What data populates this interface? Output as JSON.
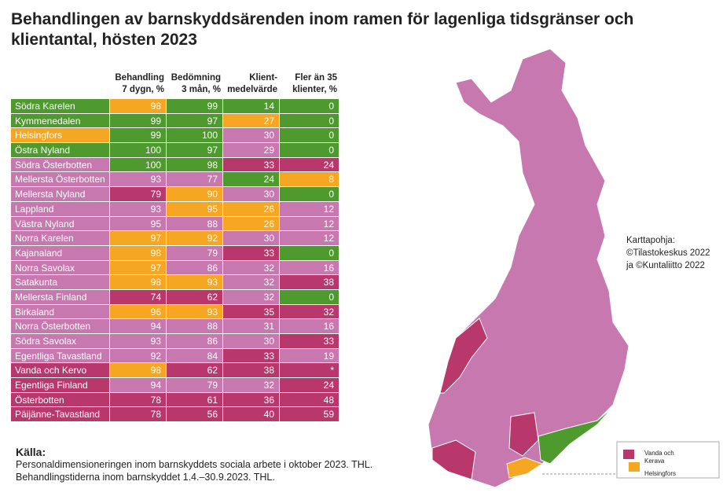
{
  "title": "Behandlingen av barnskyddsärenden inom ramen för lagenliga tidsgränser och klientantal, hösten 2023",
  "table": {
    "header": [
      "Behandling\n7 dygn, %",
      "Bedömning\n3 mån, %",
      "Klient-\nmedelvärde",
      "Fler än 35\nklienter, %"
    ],
    "rows": [
      {
        "name": "Södra Karelen",
        "name_color": "#4e9a2f",
        "cells": [
          {
            "value": 98,
            "color": "#f5a623"
          },
          {
            "value": 99,
            "color": "#4e9a2f"
          },
          {
            "value": 14,
            "color": "#4e9a2f"
          },
          {
            "value": 0,
            "color": "#4e9a2f"
          }
        ]
      },
      {
        "name": "Kymmenedalen",
        "name_color": "#4e9a2f",
        "cells": [
          {
            "value": 99,
            "color": "#4e9a2f"
          },
          {
            "value": 97,
            "color": "#4e9a2f"
          },
          {
            "value": 27,
            "color": "#f5a623"
          },
          {
            "value": 0,
            "color": "#4e9a2f"
          }
        ]
      },
      {
        "name": "Helsingfors",
        "name_color": "#f5a623",
        "cells": [
          {
            "value": 99,
            "color": "#4e9a2f"
          },
          {
            "value": 100,
            "color": "#4e9a2f"
          },
          {
            "value": 30,
            "color": "#c778ae"
          },
          {
            "value": 0,
            "color": "#4e9a2f"
          }
        ]
      },
      {
        "name": "Östra Nyland",
        "name_color": "#4e9a2f",
        "cells": [
          {
            "value": 100,
            "color": "#4e9a2f"
          },
          {
            "value": 97,
            "color": "#4e9a2f"
          },
          {
            "value": 29,
            "color": "#c778ae"
          },
          {
            "value": 0,
            "color": "#4e9a2f"
          }
        ]
      },
      {
        "name": "Södra Österbotten",
        "name_color": "#c778ae",
        "cells": [
          {
            "value": 100,
            "color": "#4e9a2f"
          },
          {
            "value": 98,
            "color": "#4e9a2f"
          },
          {
            "value": 33,
            "color": "#b8386b"
          },
          {
            "value": 24,
            "color": "#b8386b"
          }
        ]
      },
      {
        "name": "Mellersta Österbotten",
        "name_color": "#c778ae",
        "cells": [
          {
            "value": 93,
            "color": "#c778ae"
          },
          {
            "value": 77,
            "color": "#c778ae"
          },
          {
            "value": 24,
            "color": "#4e9a2f"
          },
          {
            "value": 8,
            "color": "#f5a623"
          }
        ]
      },
      {
        "name": "Mellersta Nyland",
        "name_color": "#c778ae",
        "cells": [
          {
            "value": 79,
            "color": "#b8386b"
          },
          {
            "value": 90,
            "color": "#f5a623"
          },
          {
            "value": 30,
            "color": "#c778ae"
          },
          {
            "value": 0,
            "color": "#4e9a2f"
          }
        ]
      },
      {
        "name": "Lappland",
        "name_color": "#c778ae",
        "cells": [
          {
            "value": 93,
            "color": "#c778ae"
          },
          {
            "value": 95,
            "color": "#f5a623"
          },
          {
            "value": 26,
            "color": "#f5a623"
          },
          {
            "value": 12,
            "color": "#c778ae"
          }
        ]
      },
      {
        "name": "Västra Nyland",
        "name_color": "#c778ae",
        "cells": [
          {
            "value": 95,
            "color": "#c778ae"
          },
          {
            "value": 88,
            "color": "#c778ae"
          },
          {
            "value": 26,
            "color": "#f5a623"
          },
          {
            "value": 12,
            "color": "#c778ae"
          }
        ]
      },
      {
        "name": "Norra Karelen",
        "name_color": "#c778ae",
        "cells": [
          {
            "value": 97,
            "color": "#f5a623"
          },
          {
            "value": 92,
            "color": "#f5a623"
          },
          {
            "value": 30,
            "color": "#c778ae"
          },
          {
            "value": 12,
            "color": "#c778ae"
          }
        ]
      },
      {
        "name": "Kajanaland",
        "name_color": "#c778ae",
        "cells": [
          {
            "value": 98,
            "color": "#f5a623"
          },
          {
            "value": 79,
            "color": "#c778ae"
          },
          {
            "value": 33,
            "color": "#b8386b"
          },
          {
            "value": 0,
            "color": "#4e9a2f"
          }
        ]
      },
      {
        "name": "Norra Savolax",
        "name_color": "#c778ae",
        "cells": [
          {
            "value": 97,
            "color": "#f5a623"
          },
          {
            "value": 86,
            "color": "#c778ae"
          },
          {
            "value": 32,
            "color": "#c778ae"
          },
          {
            "value": 16,
            "color": "#c778ae"
          }
        ]
      },
      {
        "name": "Satakunta",
        "name_color": "#c778ae",
        "cells": [
          {
            "value": 98,
            "color": "#f5a623"
          },
          {
            "value": 93,
            "color": "#f5a623"
          },
          {
            "value": 32,
            "color": "#c778ae"
          },
          {
            "value": 38,
            "color": "#b8386b"
          }
        ]
      },
      {
        "name": "Mellersta Finland",
        "name_color": "#c778ae",
        "cells": [
          {
            "value": 74,
            "color": "#b8386b"
          },
          {
            "value": 62,
            "color": "#b8386b"
          },
          {
            "value": 32,
            "color": "#c778ae"
          },
          {
            "value": 0,
            "color": "#4e9a2f"
          }
        ]
      },
      {
        "name": "Birkaland",
        "name_color": "#c778ae",
        "cells": [
          {
            "value": 96,
            "color": "#f5a623"
          },
          {
            "value": 93,
            "color": "#f5a623"
          },
          {
            "value": 35,
            "color": "#b8386b"
          },
          {
            "value": 32,
            "color": "#b8386b"
          }
        ]
      },
      {
        "name": "Norra Österbotten",
        "name_color": "#c778ae",
        "cells": [
          {
            "value": 94,
            "color": "#c778ae"
          },
          {
            "value": 88,
            "color": "#c778ae"
          },
          {
            "value": 31,
            "color": "#c778ae"
          },
          {
            "value": 16,
            "color": "#c778ae"
          }
        ]
      },
      {
        "name": "Södra Savolax",
        "name_color": "#c778ae",
        "cells": [
          {
            "value": 93,
            "color": "#c778ae"
          },
          {
            "value": 86,
            "color": "#c778ae"
          },
          {
            "value": 30,
            "color": "#c778ae"
          },
          {
            "value": 33,
            "color": "#b8386b"
          }
        ]
      },
      {
        "name": "Egentliga Tavastland",
        "name_color": "#c778ae",
        "cells": [
          {
            "value": 92,
            "color": "#c778ae"
          },
          {
            "value": 84,
            "color": "#c778ae"
          },
          {
            "value": 33,
            "color": "#b8386b"
          },
          {
            "value": 19,
            "color": "#c778ae"
          }
        ]
      },
      {
        "name": "Vanda och Kervo",
        "name_color": "#b8386b",
        "cells": [
          {
            "value": 98,
            "color": "#f5a623"
          },
          {
            "value": 62,
            "color": "#b8386b"
          },
          {
            "value": 38,
            "color": "#b8386b"
          },
          {
            "value": "*",
            "color": "#b8386b"
          }
        ]
      },
      {
        "name": "Egentliga Finland",
        "name_color": "#b8386b",
        "cells": [
          {
            "value": 94,
            "color": "#c778ae"
          },
          {
            "value": 79,
            "color": "#c778ae"
          },
          {
            "value": 32,
            "color": "#c778ae"
          },
          {
            "value": 24,
            "color": "#b8386b"
          }
        ]
      },
      {
        "name": "Österbotten",
        "name_color": "#b8386b",
        "cells": [
          {
            "value": 78,
            "color": "#b8386b"
          },
          {
            "value": 61,
            "color": "#b8386b"
          },
          {
            "value": 36,
            "color": "#b8386b"
          },
          {
            "value": 48,
            "color": "#b8386b"
          }
        ]
      },
      {
        "name": "Päijänne-Tavastland",
        "name_color": "#b8386b",
        "cells": [
          {
            "value": 78,
            "color": "#b8386b"
          },
          {
            "value": 56,
            "color": "#b8386b"
          },
          {
            "value": 40,
            "color": "#b8386b"
          },
          {
            "value": 59,
            "color": "#b8386b"
          }
        ]
      }
    ]
  },
  "map": {
    "credit": "Karttapohja:\n©Tilastokeskus 2022\nja ©Kuntaliitto 2022",
    "legend": [
      "Vanda och\nKerava",
      "Helsingfors"
    ]
  },
  "source": {
    "heading": "Källa:",
    "lines": [
      "Personaldimensioneringen inom barnskyddets sociala arbete i oktober 2023. THL.",
      "Behandlingstiderna inom barnskyddet 1.4.–30.9.2023. THL."
    ]
  }
}
